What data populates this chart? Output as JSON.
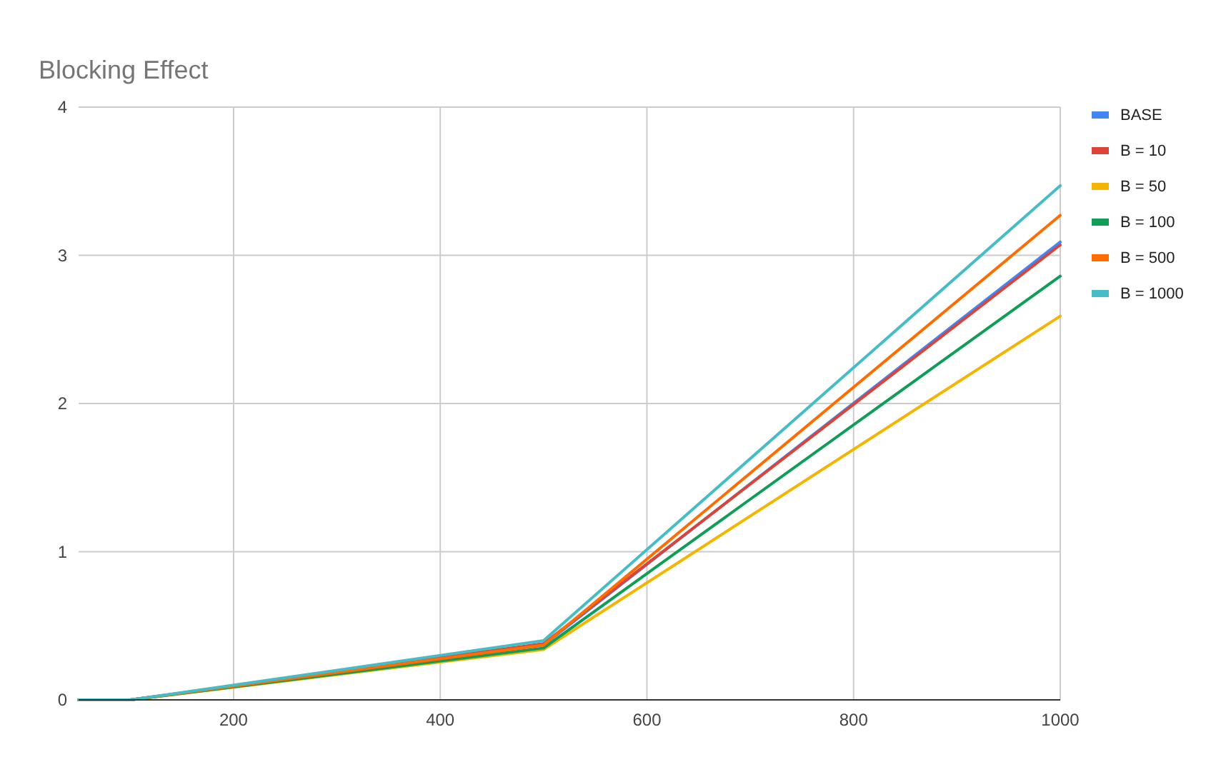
{
  "chart_data": {
    "type": "line",
    "title": "Blocking Effect",
    "x": [
      50,
      100,
      500,
      1000
    ],
    "series": [
      {
        "name": "BASE",
        "color": "#4285f4",
        "values": [
          0,
          0,
          0.37,
          3.09
        ]
      },
      {
        "name": "B = 10",
        "color": "#db4437",
        "values": [
          0,
          0,
          0.38,
          3.07
        ]
      },
      {
        "name": "B = 50",
        "color": "#f4b400",
        "values": [
          0,
          0,
          0.34,
          2.59
        ]
      },
      {
        "name": "B = 100",
        "color": "#0f9d58",
        "values": [
          0,
          0,
          0.35,
          2.86
        ]
      },
      {
        "name": "B = 500",
        "color": "#ff6d00",
        "values": [
          0,
          0,
          0.37,
          3.27
        ]
      },
      {
        "name": "B = 1000",
        "color": "#46bdc6",
        "values": [
          0,
          0,
          0.4,
          3.47
        ]
      }
    ],
    "xlim": [
      50,
      1000
    ],
    "xticks": [
      200,
      400,
      600,
      800,
      1000
    ],
    "ylim": [
      0,
      4
    ],
    "yticks": [
      0,
      1,
      2,
      3,
      4
    ],
    "grid": true,
    "legend": "right",
    "marker": "none",
    "line_style": "solid"
  }
}
